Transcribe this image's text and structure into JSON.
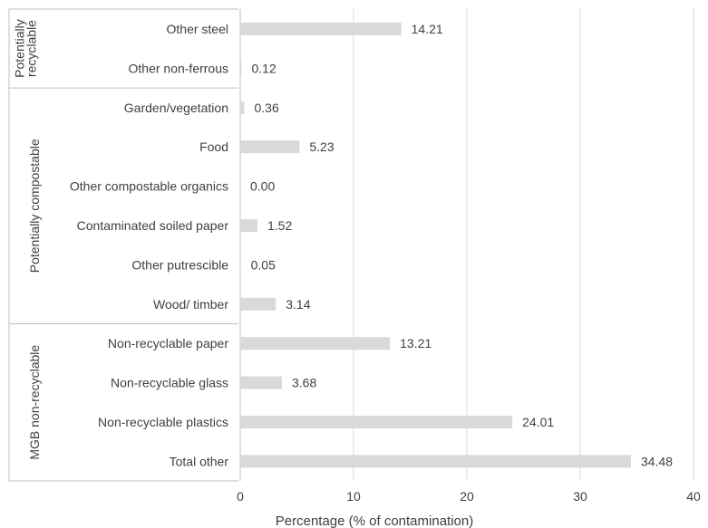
{
  "chart_data": {
    "type": "bar",
    "orientation": "horizontal",
    "xlabel": "Percentage (% of contamination)",
    "xlim": [
      0,
      40
    ],
    "xticks": [
      0,
      10,
      20,
      30,
      40
    ],
    "grid": "vertical",
    "bar_color": "#d9d9d9",
    "groups": [
      {
        "name": "Potentially recyclable",
        "label_lines": [
          "Potentially",
          "recyclable"
        ],
        "start": 0,
        "end": 1
      },
      {
        "name": "Potentially compostable",
        "label_lines": [
          "Potentially compostable"
        ],
        "start": 2,
        "end": 7
      },
      {
        "name": "MGB non-recyclable",
        "label_lines": [
          "MGB non-recyclable"
        ],
        "start": 8,
        "end": 11
      }
    ],
    "categories": [
      "Other steel",
      "Other non-ferrous",
      "Garden/vegetation",
      "Food",
      "Other compostable organics",
      "Contaminated soiled paper",
      "Other putrescible",
      "Wood/ timber",
      "Non-recyclable paper",
      "Non-recyclable glass",
      "Non-recyclable plastics",
      "Total other"
    ],
    "values": [
      14.21,
      0.12,
      0.36,
      5.23,
      0.0,
      1.52,
      0.05,
      3.14,
      13.21,
      3.68,
      24.01,
      34.48
    ],
    "value_labels": [
      "14.21",
      "0.12",
      "0.36",
      "5.23",
      "0.00",
      "1.52",
      "0.05",
      "3.14",
      "13.21",
      "3.68",
      "24.01",
      "34.48"
    ]
  }
}
